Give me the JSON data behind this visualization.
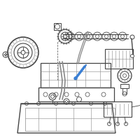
{
  "bg_color": "#ffffff",
  "highlight_color": "#3a7fd4",
  "line_color": "#888888",
  "dark_line": "#444444",
  "figsize": [
    2.0,
    2.0
  ],
  "dpi": 100
}
